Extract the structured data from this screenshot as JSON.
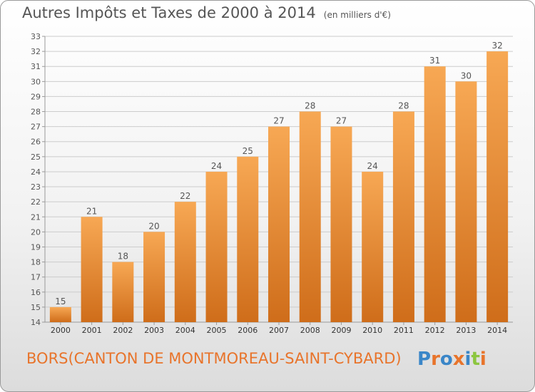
{
  "title": "Autres Impôts et Taxes de 2000 à 2014",
  "unit_note": "(en milliers d'€)",
  "location": "BORS(CANTON DE MONTMOREAU-SAINT-CYBARD)",
  "logo": {
    "text": "Proxiti",
    "letters": [
      "P",
      "r",
      "o",
      "x",
      "i",
      "t",
      "i"
    ],
    "colors": [
      "#3a86c8",
      "#e8742b",
      "#3a86c8",
      "#e8742b",
      "#3a86c8",
      "#8cc63f",
      "#e8742b"
    ]
  },
  "colors": {
    "bar_top": "#f7a854",
    "bar_bottom": "#cf6d1a",
    "grid": "#cccccc",
    "text": "#555555",
    "accent": "#e8742b"
  },
  "chart_data": {
    "type": "bar",
    "title": "Autres Impôts et Taxes de 2000 à 2014",
    "categories": [
      "2000",
      "2001",
      "2002",
      "2003",
      "2004",
      "2005",
      "2006",
      "2007",
      "2008",
      "2009",
      "2010",
      "2011",
      "2012",
      "2013",
      "2014"
    ],
    "values": [
      15,
      21,
      18,
      20,
      22,
      24,
      25,
      27,
      28,
      27,
      24,
      28,
      31,
      30,
      32
    ],
    "ylim": [
      14,
      33
    ],
    "yticks": [
      14,
      15,
      16,
      17,
      18,
      19,
      20,
      21,
      22,
      23,
      24,
      25,
      26,
      27,
      28,
      29,
      30,
      31,
      32,
      33
    ],
    "grid": true,
    "xlabel": "",
    "ylabel": ""
  }
}
